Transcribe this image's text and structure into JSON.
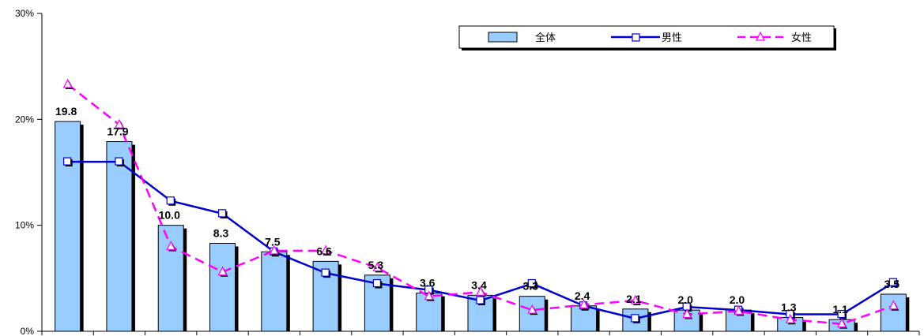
{
  "chart_data": {
    "type": "bar",
    "categories": [
      "",
      "",
      "",
      "",
      "",
      "",
      "",
      "",
      "",
      "",
      "",
      "",
      "",
      "",
      "",
      "",
      ""
    ],
    "ylim": [
      0,
      30
    ],
    "y_ticks": [
      "0%",
      "10%",
      "20%",
      "30%"
    ],
    "y_tick_values": [
      0,
      10,
      20,
      30
    ],
    "grid": false,
    "legend_position": "top-right",
    "series": [
      {
        "name": "全体",
        "type": "bar",
        "color": "#99ccff",
        "values": [
          19.8,
          17.9,
          10.0,
          8.3,
          7.5,
          6.6,
          5.3,
          3.6,
          3.4,
          3.3,
          2.4,
          2.1,
          2.0,
          2.0,
          1.3,
          1.1,
          3.5
        ],
        "labels": [
          "19.8",
          "17.9",
          "10.0",
          "8.3",
          "7.5",
          "6.6",
          "5.3",
          "3.6",
          "3.4",
          "3.3",
          "2.4",
          "2.1",
          "2.0",
          "2.0",
          "1.3",
          "1.1",
          "3.5"
        ]
      },
      {
        "name": "男性",
        "type": "line",
        "color": "#0000cc",
        "values": [
          16.0,
          16.0,
          12.3,
          11.1,
          7.5,
          5.5,
          4.5,
          3.9,
          2.9,
          4.5,
          2.4,
          1.2,
          2.3,
          2.0,
          1.6,
          1.6,
          4.6
        ]
      },
      {
        "name": "女性",
        "type": "line",
        "color": "#ff00ff",
        "values": [
          23.3,
          19.5,
          8.0,
          5.6,
          7.6,
          7.6,
          6.0,
          3.3,
          3.7,
          2.0,
          2.5,
          2.9,
          1.6,
          1.9,
          1.1,
          0.7,
          2.4
        ]
      }
    ]
  }
}
